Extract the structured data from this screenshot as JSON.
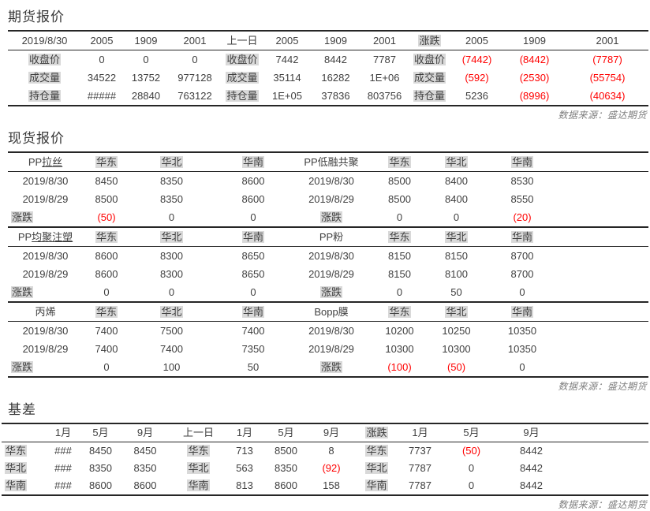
{
  "page": {
    "source_note": "数据来源：盛达期货"
  },
  "styles": {
    "red_color": "#ff0000",
    "text_color": "#3f3f3f",
    "highlight_bg": "#d9d9d9",
    "line_color": "#262626",
    "highlighted_labels": [
      "收盘价",
      "成交量",
      "持仓量",
      "涨跌",
      "华东",
      "华北",
      "华南"
    ],
    "underlined_suffix": {
      "PP拉丝": "拉丝",
      "PP均聚注塑": "均聚注塑"
    }
  },
  "futures": {
    "title": "期货报价",
    "header": [
      "2019/8/30",
      "2005",
      "1909",
      "2001",
      "上一日",
      "2005",
      "1909",
      "2001",
      "涨跌",
      "2005",
      "1909",
      "2001"
    ],
    "rows": [
      [
        "收盘价",
        "0",
        "0",
        "0",
        "收盘价",
        "7442",
        "8442",
        "7787",
        "收盘价",
        "(7442)",
        "(8442)",
        "(7787)"
      ],
      [
        "成交量",
        "34522",
        "13752",
        "977128",
        "成交量",
        "35114",
        "16282",
        "1E+06",
        "成交量",
        "(592)",
        "(2530)",
        "(55754)"
      ],
      [
        "持仓量",
        "#####",
        "28840",
        "763122",
        "持仓量",
        "1E+05",
        "37836",
        "803756",
        "持仓量",
        "5236",
        "(8996)",
        "(40634)"
      ]
    ]
  },
  "spot": {
    "title": "现货报价",
    "groups": [
      {
        "header": [
          "PP拉丝",
          "华东",
          "华北",
          "华南",
          "PP低融共聚",
          "华东",
          "华北",
          "华南"
        ],
        "rows": [
          [
            "2019/8/30",
            "8450",
            "8350",
            "8600",
            "2019/8/30",
            "8500",
            "8400",
            "8530"
          ],
          [
            "2019/8/29",
            "8500",
            "8350",
            "8600",
            "2019/8/29",
            "8500",
            "8400",
            "8550"
          ],
          [
            "涨跌",
            "(50)",
            "0",
            "0",
            "涨跌",
            "0",
            "0",
            "(20)"
          ]
        ]
      },
      {
        "header": [
          "PP均聚注塑",
          "华东",
          "华北",
          "华南",
          "PP粉",
          "华东",
          "华北",
          "华南"
        ],
        "rows": [
          [
            "2019/8/30",
            "8600",
            "8300",
            "8650",
            "2019/8/30",
            "8150",
            "8150",
            "8700"
          ],
          [
            "2019/8/29",
            "8600",
            "8300",
            "8650",
            "2019/8/29",
            "8150",
            "8100",
            "8700"
          ],
          [
            "涨跌",
            "0",
            "0",
            "0",
            "涨跌",
            "0",
            "50",
            "0"
          ]
        ]
      },
      {
        "header": [
          "丙烯",
          "华东",
          "华北",
          "华南",
          "Bopp膜",
          "华东",
          "华北",
          "华南"
        ],
        "rows": [
          [
            "2019/8/30",
            "7400",
            "7500",
            "7400",
            "2019/8/30",
            "10200",
            "10250",
            "10350"
          ],
          [
            "2019/8/29",
            "7400",
            "7400",
            "7350",
            "2019/8/29",
            "10300",
            "10300",
            "10350"
          ],
          [
            "涨跌",
            "0",
            "100",
            "50",
            "涨跌",
            "(100)",
            "(50)",
            "0"
          ]
        ]
      }
    ]
  },
  "basis": {
    "title": "基差",
    "header": [
      "",
      "1月",
      "5月",
      "9月",
      "上一日",
      "1月",
      "5月",
      "9月",
      "涨跌",
      "1月",
      "5月",
      "9月"
    ],
    "rows": [
      [
        "华东",
        "###",
        "8450",
        "8450",
        "华东",
        "713",
        "8500",
        "8",
        "华东",
        "7737",
        "(50)",
        "8442"
      ],
      [
        "华北",
        "###",
        "8350",
        "8350",
        "华北",
        "563",
        "8350",
        "(92)",
        "华北",
        "7787",
        "0",
        "8442"
      ],
      [
        "华南",
        "###",
        "8600",
        "8600",
        "华南",
        "813",
        "8600",
        "158",
        "华南",
        "7787",
        "0",
        "8442"
      ]
    ]
  }
}
